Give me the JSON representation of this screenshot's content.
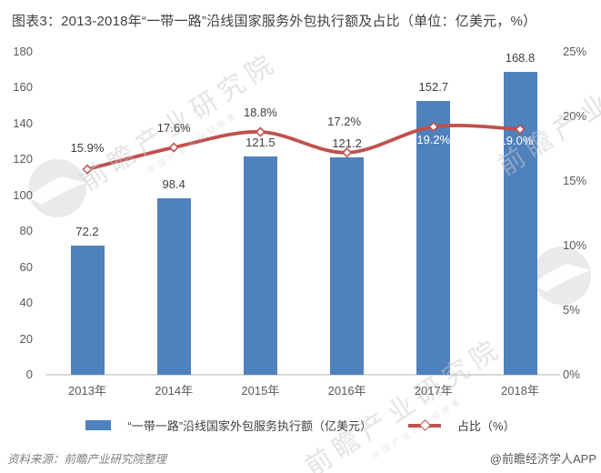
{
  "title": "图表3：2013-2018年“一带一路”沿线国家服务外包执行额及占比（单位：亿美元，%）",
  "chart_data": {
    "type": "bar",
    "subtype": "bar-line combo with dual y axes",
    "categories": [
      "2013年",
      "2014年",
      "2015年",
      "2016年",
      "2017年",
      "2018年"
    ],
    "series": [
      {
        "name": "“一带一路”沿线国家外包服务执行额（亿美元）",
        "type": "bar",
        "axis": "left",
        "color": "#4F81BD",
        "values": [
          72.2,
          98.4,
          121.5,
          121.2,
          152.7,
          168.8
        ],
        "value_labels": [
          "72.2",
          "98.4",
          "121.5",
          "121.2",
          "152.7",
          "168.8"
        ]
      },
      {
        "name": "占比（%）",
        "type": "line",
        "axis": "right",
        "color": "#C0504D",
        "marker": "diamond",
        "values": [
          15.9,
          17.6,
          18.8,
          17.2,
          19.2,
          19.0
        ],
        "value_labels": [
          "15.9%",
          "17.6%",
          "18.8%",
          "17.2%",
          "19.2%",
          "19.0%"
        ]
      }
    ],
    "left_axis": {
      "min": 0,
      "max": 180,
      "step": 20,
      "ticks": [
        "0",
        "20",
        "40",
        "60",
        "80",
        "100",
        "120",
        "140",
        "160",
        "180"
      ]
    },
    "right_axis": {
      "min": 0,
      "max": 25,
      "step": 5,
      "ticks": [
        "0%",
        "5%",
        "10%",
        "15%",
        "20%",
        "25%"
      ]
    },
    "grid": false,
    "legend_position": "bottom"
  },
  "legend": {
    "items": [
      {
        "label": "“一带一路”沿线国家外包服务执行额（亿美元）",
        "swatch": "blue-bar-swatch"
      },
      {
        "label": "占比（%）",
        "swatch": "red-line-diamond-swatch"
      }
    ]
  },
  "footer": {
    "source": "资料来源：前瞻产业研究院整理",
    "credit": "@前瞻经济学人APP"
  },
  "watermark": {
    "text": "前瞻产业研究院",
    "subtext": "中国产业咨询领导者",
    "logo": "qianzhan-bird-logo"
  },
  "colors": {
    "bar": "#4F81BD",
    "line": "#C0504D",
    "axis_text": "#595959",
    "label_text": "#404040",
    "white_label": "#FFFFFF",
    "axis_line": "#D9D9D9",
    "title_text": "#404040",
    "watermark": "#C9C9C9",
    "footer_source": "#808080",
    "footer_credit": "#595959",
    "background": "#FFFFFF"
  }
}
